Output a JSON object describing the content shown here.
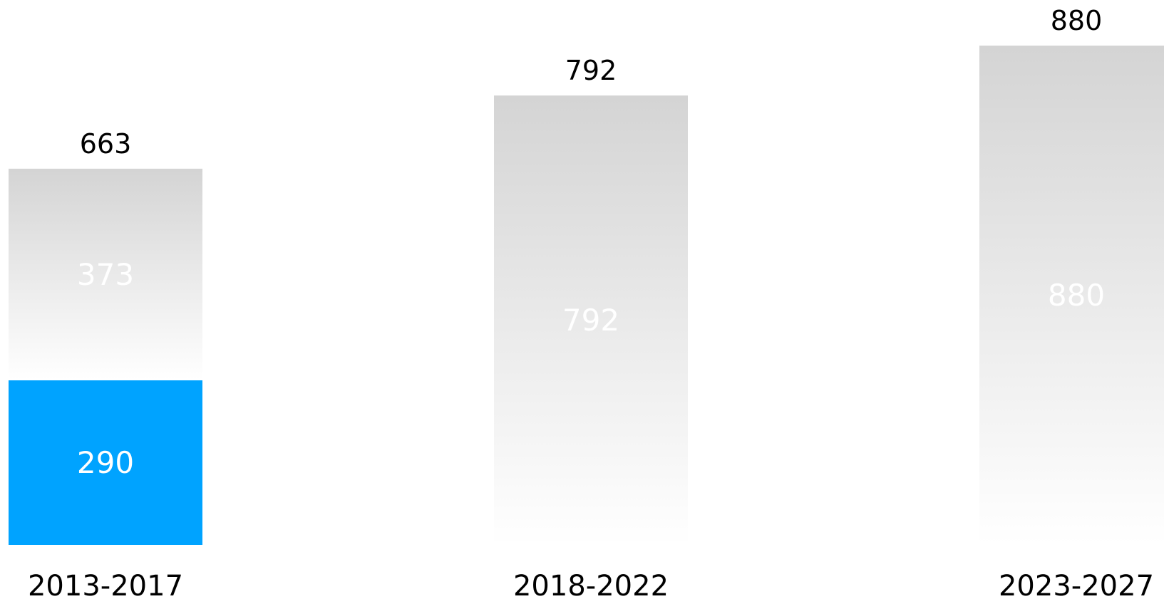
{
  "chart_data": {
    "type": "bar",
    "stacked": true,
    "categories": [
      "2013-2017",
      "2018-2022",
      "2023-2027"
    ],
    "series": [
      {
        "values": [
          290,
          null,
          null
        ],
        "color": "#00a3ff"
      },
      {
        "values": [
          373,
          792,
          880
        ],
        "color": "#d4d4d4",
        "fill": "gradient-gray-to-white"
      }
    ],
    "totals": [
      663,
      792,
      880
    ],
    "title": "",
    "xlabel": "",
    "ylabel": "",
    "ylim": [
      0,
      880
    ],
    "grid": false,
    "legend": "none"
  },
  "colors": {
    "accent": "#00a3ff",
    "gradient_top": "#d4d4d4",
    "gradient_bottom": "#ffffff",
    "text": "#000000",
    "segment_text": "#ffffff"
  }
}
